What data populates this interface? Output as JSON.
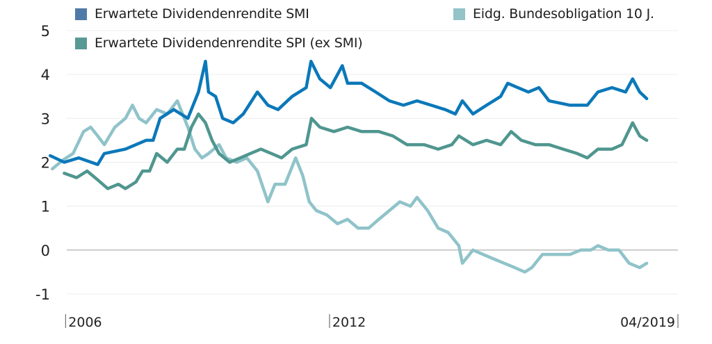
{
  "chart_data": {
    "type": "line",
    "title": "",
    "xlabel": "",
    "ylabel": "",
    "ylim": [
      -1,
      5
    ],
    "xlim": [
      2005.6,
      2019.92
    ],
    "yticks": [
      "-1",
      "0",
      "1",
      "2",
      "3",
      "4",
      "5"
    ],
    "xticks": [
      {
        "value": 2006,
        "label": "2006"
      },
      {
        "value": 2012,
        "label": "2012"
      },
      {
        "value": 2019.25,
        "label": "04/2019"
      }
    ],
    "grid": true,
    "legend_position": "top",
    "series": [
      {
        "name": "Erwartete Dividendenrendite SMI",
        "legend_color": "#4f7aa8",
        "color": "#0b78b9",
        "x": [
          2005.65,
          2005.97,
          2006.3,
          2006.73,
          2006.88,
          2007.36,
          2007.83,
          2007.99,
          2008.15,
          2008.46,
          2008.78,
          2009.02,
          2009.18,
          2009.25,
          2009.41,
          2009.57,
          2009.81,
          2010.04,
          2010.36,
          2010.6,
          2010.83,
          2011.15,
          2011.47,
          2011.58,
          2011.78,
          2012.02,
          2012.29,
          2012.41,
          2012.73,
          2013.05,
          2013.36,
          2013.68,
          2013.99,
          2014.31,
          2014.63,
          2014.86,
          2015.02,
          2015.26,
          2015.57,
          2015.89,
          2016.05,
          2016.28,
          2016.52,
          2016.76,
          2016.99,
          2017.47,
          2017.86,
          2018.1,
          2018.42,
          2018.73,
          2018.89,
          2019.05,
          2019.21
        ],
        "y": [
          2.15,
          2.0,
          2.1,
          1.95,
          2.2,
          2.3,
          2.5,
          2.5,
          3.0,
          3.2,
          3.0,
          3.6,
          4.3,
          3.6,
          3.5,
          3.0,
          2.9,
          3.1,
          3.6,
          3.3,
          3.2,
          3.5,
          3.7,
          4.3,
          3.9,
          3.7,
          4.2,
          3.8,
          3.8,
          3.6,
          3.4,
          3.3,
          3.4,
          3.3,
          3.2,
          3.1,
          3.4,
          3.1,
          3.3,
          3.5,
          3.8,
          3.7,
          3.6,
          3.7,
          3.4,
          3.3,
          3.3,
          3.6,
          3.7,
          3.6,
          3.9,
          3.6,
          3.45
        ]
      },
      {
        "name": "Eidg. Bundesobligation 10 J.",
        "legend_color": "#94c3c8",
        "color": "#8fc3c9",
        "x": [
          2005.7,
          2005.94,
          2006.17,
          2006.41,
          2006.57,
          2006.73,
          2006.88,
          2007.12,
          2007.36,
          2007.52,
          2007.67,
          2007.83,
          2008.07,
          2008.31,
          2008.54,
          2008.78,
          2008.94,
          2009.1,
          2009.25,
          2009.49,
          2009.65,
          2009.89,
          2010.12,
          2010.36,
          2010.6,
          2010.76,
          2010.99,
          2011.23,
          2011.39,
          2011.54,
          2011.7,
          2011.94,
          2012.18,
          2012.41,
          2012.65,
          2012.89,
          2013.12,
          2013.36,
          2013.6,
          2013.84,
          2013.99,
          2014.23,
          2014.47,
          2014.7,
          2014.94,
          2015.02,
          2015.26,
          2015.49,
          2015.73,
          2015.97,
          2016.21,
          2016.44,
          2016.6,
          2016.84,
          2017.15,
          2017.47,
          2017.71,
          2017.94,
          2018.1,
          2018.34,
          2018.58,
          2018.81,
          2019.05,
          2019.21
        ],
        "y": [
          1.85,
          2.05,
          2.2,
          2.7,
          2.8,
          2.6,
          2.4,
          2.8,
          3.0,
          3.3,
          3.0,
          2.9,
          3.2,
          3.1,
          3.4,
          2.8,
          2.3,
          2.1,
          2.2,
          2.4,
          2.1,
          2.0,
          2.1,
          1.8,
          1.1,
          1.5,
          1.5,
          2.1,
          1.7,
          1.1,
          0.9,
          0.8,
          0.6,
          0.7,
          0.5,
          0.5,
          0.7,
          0.9,
          1.1,
          1.0,
          1.2,
          0.9,
          0.5,
          0.4,
          0.1,
          -0.3,
          0.0,
          -0.1,
          -0.2,
          -0.3,
          -0.4,
          -0.5,
          -0.4,
          -0.1,
          -0.1,
          -0.1,
          0.0,
          0.0,
          0.1,
          0.0,
          0.0,
          -0.3,
          -0.4,
          -0.3
        ]
      },
      {
        "name": "Erwartete Dividendenrendite SPI (ex SMI)",
        "legend_color": "#5a9a95",
        "color": "#4f968f",
        "x": [
          2005.97,
          2006.25,
          2006.49,
          2006.73,
          2006.96,
          2007.2,
          2007.36,
          2007.6,
          2007.75,
          2007.91,
          2008.07,
          2008.31,
          2008.54,
          2008.7,
          2008.86,
          2009.02,
          2009.18,
          2009.33,
          2009.49,
          2009.73,
          2009.97,
          2010.2,
          2010.44,
          2010.68,
          2010.91,
          2011.15,
          2011.47,
          2011.59,
          2011.78,
          2012.1,
          2012.41,
          2012.73,
          2013.12,
          2013.44,
          2013.76,
          2014.15,
          2014.47,
          2014.78,
          2014.94,
          2015.26,
          2015.57,
          2015.89,
          2016.13,
          2016.36,
          2016.68,
          2016.99,
          2017.31,
          2017.63,
          2017.86,
          2018.1,
          2018.42,
          2018.65,
          2018.89,
          2019.05,
          2019.21
        ],
        "y": [
          1.75,
          1.65,
          1.8,
          1.6,
          1.4,
          1.5,
          1.4,
          1.55,
          1.8,
          1.8,
          2.2,
          2.0,
          2.3,
          2.3,
          2.8,
          3.1,
          2.9,
          2.5,
          2.2,
          2.0,
          2.1,
          2.2,
          2.3,
          2.2,
          2.1,
          2.3,
          2.4,
          3.0,
          2.8,
          2.7,
          2.8,
          2.7,
          2.7,
          2.6,
          2.4,
          2.4,
          2.3,
          2.4,
          2.6,
          2.4,
          2.5,
          2.4,
          2.7,
          2.5,
          2.4,
          2.4,
          2.3,
          2.2,
          2.1,
          2.3,
          2.3,
          2.4,
          2.9,
          2.6,
          2.5
        ]
      }
    ]
  }
}
